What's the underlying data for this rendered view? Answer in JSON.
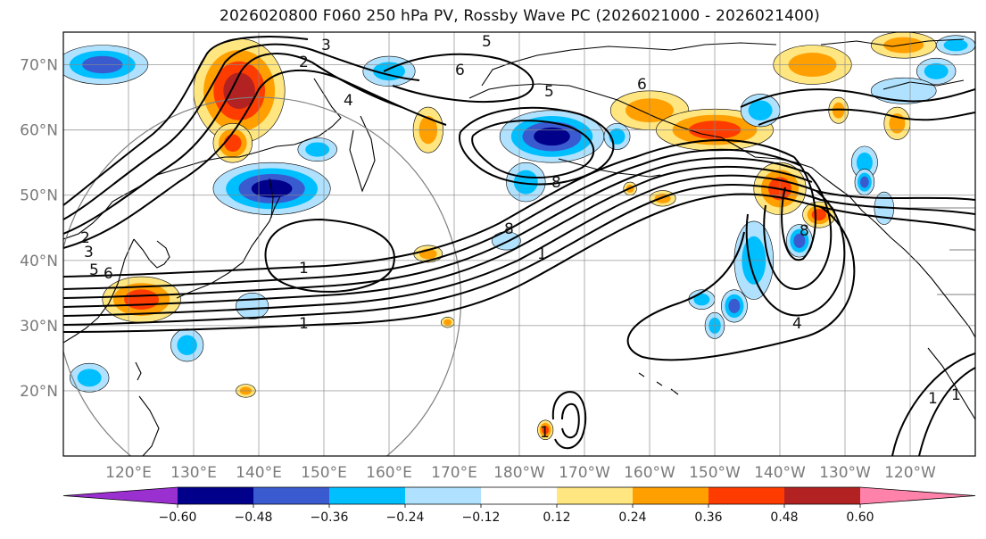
{
  "title": "2026020800 F060 250 hPa PV, Rossby Wave PC (2026021000 - 2026021400)",
  "map": {
    "projection": "PlateCarree",
    "extent_lon": [
      110,
      250
    ],
    "extent_lat": [
      10,
      75
    ],
    "lat_ticks": [
      {
        "value": 70,
        "label": "70°N"
      },
      {
        "value": 60,
        "label": "60°N"
      },
      {
        "value": 50,
        "label": "50°N"
      },
      {
        "value": 40,
        "label": "40°N"
      },
      {
        "value": 30,
        "label": "30°N"
      },
      {
        "value": 20,
        "label": "20°N"
      }
    ],
    "lon_ticks": [
      {
        "value": 120,
        "label": "120°E"
      },
      {
        "value": 130,
        "label": "130°E"
      },
      {
        "value": 140,
        "label": "140°E"
      },
      {
        "value": 150,
        "label": "150°E"
      },
      {
        "value": 160,
        "label": "160°E"
      },
      {
        "value": 170,
        "label": "170°E"
      },
      {
        "value": 180,
        "label": "180°W"
      },
      {
        "value": 190,
        "label": "170°W"
      },
      {
        "value": 200,
        "label": "160°W"
      },
      {
        "value": 210,
        "label": "150°W"
      },
      {
        "value": 220,
        "label": "140°W"
      },
      {
        "value": 230,
        "label": "130°W"
      },
      {
        "value": 240,
        "label": "120°W"
      }
    ],
    "gridlines": true,
    "reference_circle": {
      "center_lon": 140,
      "center_lat": 34,
      "radius_deg": 31,
      "color": "#808080"
    },
    "contour_labels": [
      "1",
      "2",
      "3",
      "4",
      "5",
      "6",
      "8"
    ]
  },
  "colorbar": {
    "boundaries": [
      -0.72,
      -0.6,
      -0.48,
      -0.36,
      -0.24,
      -0.12,
      0.12,
      0.24,
      0.36,
      0.48,
      0.6,
      0.72
    ],
    "tick_labels": [
      "−0.60",
      "−0.48",
      "−0.36",
      "−0.24",
      "−0.12",
      "0.12",
      "0.24",
      "0.36",
      "0.48",
      "0.60"
    ],
    "colors": [
      "#9b30d0",
      "#00008b",
      "#3a5bd0",
      "#00bfff",
      "#b0e2ff",
      "#ffffff",
      "#ffe680",
      "#ffa000",
      "#ff3c00",
      "#b22222",
      "#ff82ab"
    ],
    "extend": "both"
  },
  "anomalies": [
    {
      "lon": 137,
      "lat": 66,
      "rx": 7,
      "ry": 8,
      "v": 0.52
    },
    {
      "lon": 136,
      "lat": 58,
      "rx": 3,
      "ry": 3,
      "v": 0.5
    },
    {
      "lon": 116,
      "lat": 70,
      "rx": 7,
      "ry": 3,
      "v": -0.5
    },
    {
      "lon": 114,
      "lat": 22,
      "rx": 3,
      "ry": 2.2,
      "v": -0.3
    },
    {
      "lon": 122,
      "lat": 34,
      "rx": 6,
      "ry": 3.5,
      "v": 0.42
    },
    {
      "lon": 142,
      "lat": 51,
      "rx": 9,
      "ry": 4,
      "v": -0.52
    },
    {
      "lon": 149,
      "lat": 57,
      "rx": 3,
      "ry": 1.8,
      "v": -0.3
    },
    {
      "lon": 160,
      "lat": 69,
      "rx": 4,
      "ry": 2.3,
      "v": -0.38
    },
    {
      "lon": 166,
      "lat": 60,
      "rx": 2.3,
      "ry": 3.5,
      "v": 0.3
    },
    {
      "lon": 185,
      "lat": 59,
      "rx": 8,
      "ry": 4,
      "v": -0.55
    },
    {
      "lon": 181,
      "lat": 52,
      "rx": 3,
      "ry": 3,
      "v": -0.35
    },
    {
      "lon": 178,
      "lat": 43,
      "rx": 2.2,
      "ry": 1.4,
      "v": -0.2
    },
    {
      "lon": 166,
      "lat": 41,
      "rx": 2.2,
      "ry": 1.3,
      "v": 0.3
    },
    {
      "lon": 169,
      "lat": 30.5,
      "rx": 1,
      "ry": 0.8,
      "v": 0.3
    },
    {
      "lon": 139,
      "lat": 33,
      "rx": 2.5,
      "ry": 2,
      "v": -0.24
    },
    {
      "lon": 129,
      "lat": 27,
      "rx": 2.5,
      "ry": 2.5,
      "v": -0.3
    },
    {
      "lon": 138,
      "lat": 20,
      "rx": 1.5,
      "ry": 1,
      "v": 0.3
    },
    {
      "lon": 200,
      "lat": 63,
      "rx": 6,
      "ry": 3,
      "v": 0.3
    },
    {
      "lon": 210,
      "lat": 60,
      "rx": 9,
      "ry": 3.2,
      "v": 0.5
    },
    {
      "lon": 220,
      "lat": 51,
      "rx": 4,
      "ry": 4,
      "v": 0.46
    },
    {
      "lon": 226,
      "lat": 47,
      "rx": 2.5,
      "ry": 2,
      "v": 0.4
    },
    {
      "lon": 216,
      "lat": 40,
      "rx": 3,
      "ry": 6,
      "v": -0.32
    },
    {
      "lon": 223,
      "lat": 43,
      "rx": 2,
      "ry": 2.5,
      "v": -0.42
    },
    {
      "lon": 213,
      "lat": 33,
      "rx": 2,
      "ry": 2.5,
      "v": -0.4
    },
    {
      "lon": 210,
      "lat": 30,
      "rx": 1.5,
      "ry": 2,
      "v": -0.35
    },
    {
      "lon": 208,
      "lat": 34,
      "rx": 2,
      "ry": 1.5,
      "v": -0.3
    },
    {
      "lon": 217,
      "lat": 63,
      "rx": 3,
      "ry": 2.5,
      "v": -0.3
    },
    {
      "lon": 229,
      "lat": 63,
      "rx": 1.5,
      "ry": 2,
      "v": 0.3
    },
    {
      "lon": 238,
      "lat": 61,
      "rx": 2,
      "ry": 2.5,
      "v": 0.36
    },
    {
      "lon": 233,
      "lat": 55,
      "rx": 2,
      "ry": 2.5,
      "v": -0.35
    },
    {
      "lon": 233,
      "lat": 52,
      "rx": 1.5,
      "ry": 2,
      "v": -0.4
    },
    {
      "lon": 239,
      "lat": 73,
      "rx": 5,
      "ry": 2,
      "v": 0.36
    },
    {
      "lon": 247,
      "lat": 73,
      "rx": 3,
      "ry": 1.5,
      "v": -0.3
    },
    {
      "lon": 244,
      "lat": 69,
      "rx": 3,
      "ry": 2,
      "v": -0.3
    },
    {
      "lon": 225,
      "lat": 70,
      "rx": 6,
      "ry": 3,
      "v": 0.3
    },
    {
      "lon": 239,
      "lat": 66,
      "rx": 5,
      "ry": 2,
      "v": -0.25
    },
    {
      "lon": 184,
      "lat": 14,
      "rx": 1.2,
      "ry": 1.5,
      "v": 0.4
    },
    {
      "lon": 202,
      "lat": 49.5,
      "rx": 2,
      "ry": 1.2,
      "v": 0.3
    },
    {
      "lon": 197,
      "lat": 51,
      "rx": 1,
      "ry": 1,
      "v": 0.3
    },
    {
      "lon": 195,
      "lat": 59,
      "rx": 2,
      "ry": 2,
      "v": -0.3
    },
    {
      "lon": 236,
      "lat": 48,
      "rx": 1.5,
      "ry": 2.5,
      "v": -0.25
    }
  ]
}
